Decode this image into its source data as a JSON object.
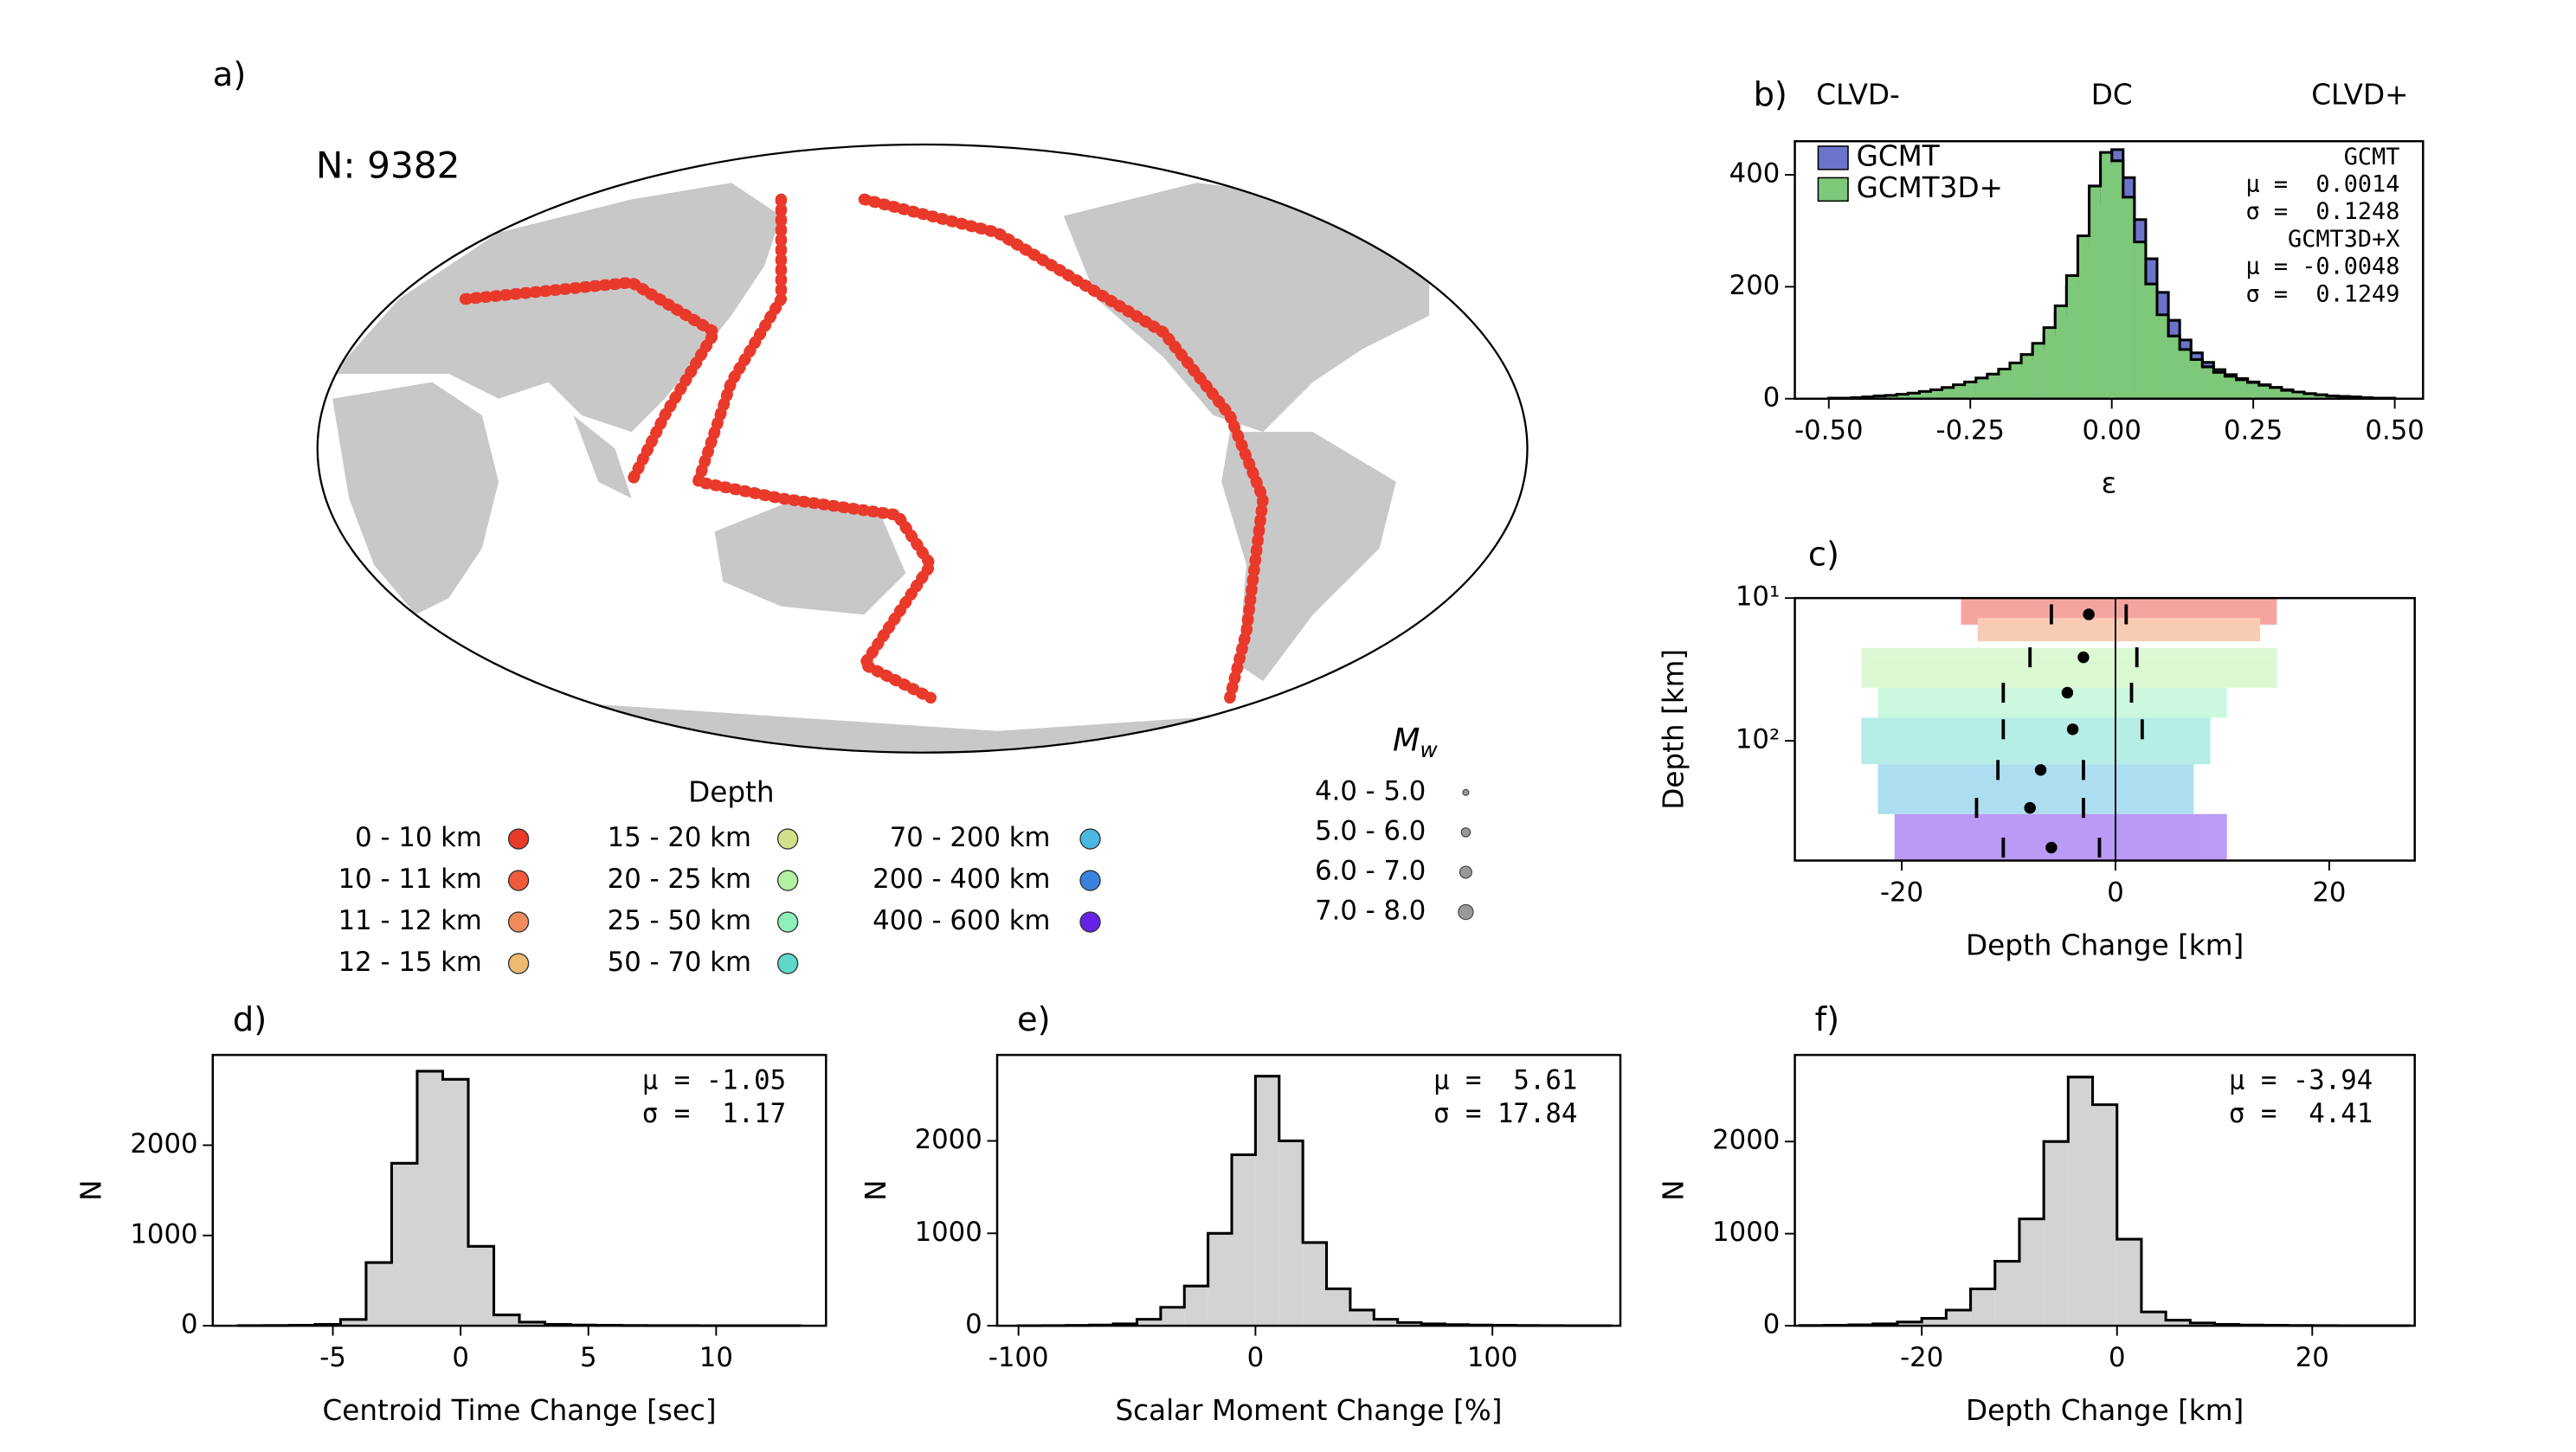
{
  "chart_data": [
    {
      "type": "map",
      "panel": "a)",
      "annotation": "N: 9382",
      "legend_title": "Depth",
      "depth_classes": [
        {
          "label": "0 - 10 km",
          "color": "#e8392a"
        },
        {
          "label": "10 - 11 km",
          "color": "#ef5a3a"
        },
        {
          "label": "11 - 12 km",
          "color": "#f08c5c"
        },
        {
          "label": "12 - 15 km",
          "color": "#eeba72"
        },
        {
          "label": "15 - 20 km",
          "color": "#d3e08a"
        },
        {
          "label": "20 - 25 km",
          "color": "#b3f0a0"
        },
        {
          "label": "25 - 50 km",
          "color": "#8df0b8"
        },
        {
          "label": "50 - 70 km",
          "color": "#5ed8c8"
        },
        {
          "label": "70 - 200 km",
          "color": "#4ab8e0"
        },
        {
          "label": "200 - 400 km",
          "color": "#3a82e0"
        },
        {
          "label": "400 - 600 km",
          "color": "#6622e8"
        }
      ],
      "size_legend": {
        "title": "M",
        "subscript": "w",
        "classes": [
          "4.0 - 5.0",
          "5.0 - 6.0",
          "6.0 - 7.0",
          "7.0 - 8.0"
        ]
      }
    },
    {
      "type": "histogram",
      "panel": "b)",
      "top_labels": [
        "CLVD-",
        "DC",
        "CLVD+"
      ],
      "xlabel": "ε",
      "legend": "upper left",
      "bins": [
        -0.5,
        -0.48,
        -0.46,
        -0.44,
        -0.42,
        -0.4,
        -0.38,
        -0.36,
        -0.34,
        -0.32,
        -0.3,
        -0.28,
        -0.26,
        -0.24,
        -0.22,
        -0.2,
        -0.18,
        -0.16,
        -0.14,
        -0.12,
        -0.1,
        -0.08,
        -0.06,
        -0.04,
        -0.02,
        0,
        0.02,
        0.04,
        0.06,
        0.08,
        0.1,
        0.12,
        0.14,
        0.16,
        0.18,
        0.2,
        0.22,
        0.24,
        0.26,
        0.28,
        0.3,
        0.32,
        0.34,
        0.36,
        0.38,
        0.4,
        0.42,
        0.44,
        0.46,
        0.48,
        0.5
      ],
      "series": [
        {
          "name": "GCMT",
          "color": "#6b74c9",
          "values": [
            1,
            1,
            2,
            3,
            4,
            5,
            7,
            9,
            12,
            15,
            18,
            22,
            27,
            33,
            40,
            48,
            58,
            72,
            90,
            115,
            150,
            200,
            270,
            350,
            420,
            445,
            395,
            320,
            250,
            190,
            140,
            105,
            82,
            65,
            52,
            43,
            36,
            30,
            25,
            20,
            16,
            12,
            9,
            7,
            5,
            4,
            3,
            2,
            1,
            1
          ]
        },
        {
          "name": "GCMT3D+",
          "color": "#7ec87a",
          "values": [
            1,
            1,
            2,
            3,
            5,
            6,
            8,
            10,
            13,
            16,
            20,
            25,
            30,
            37,
            44,
            53,
            64,
            79,
            99,
            127,
            166,
            220,
            291,
            380,
            440,
            425,
            360,
            280,
            205,
            150,
            112,
            88,
            70,
            57,
            47,
            40,
            34,
            29,
            24,
            20,
            15,
            12,
            9,
            7,
            5,
            4,
            3,
            2,
            1,
            1
          ]
        }
      ],
      "xlim": [
        -0.56,
        0.55
      ],
      "ylim": [
        0,
        460
      ],
      "xticks": [
        {
          "value": -0.5,
          "label": "-0.50"
        },
        -0.25,
        {
          "value": 0,
          "label": "0.00"
        },
        0.25,
        {
          "value": 0.5,
          "label": "0.50"
        }
      ],
      "yticks": [
        0,
        200,
        400
      ],
      "stats": [
        "GCMT",
        "μ =  0.0014",
        "σ =  0.1248",
        "GCMT3D+X",
        "μ = -0.0048",
        "σ =  0.1249"
      ]
    },
    {
      "type": "scatter",
      "panel": "c)",
      "xlabel": "Depth Change [km]",
      "ylabel": "Depth [km]",
      "log_y": true,
      "invert_y": true,
      "color": "#000000",
      "x": [
        -2.5,
        -3,
        -4.5,
        -4,
        -7,
        -8,
        -6
      ],
      "y": [
        13,
        26,
        46,
        83,
        160,
        295,
        560
      ],
      "xerr": [
        3.5,
        5,
        6,
        6.5,
        4,
        5,
        4.5
      ],
      "xlim": [
        -30,
        28
      ],
      "ylim": [
        10,
        690
      ],
      "xticks": [
        -20,
        0,
        20
      ],
      "yticks": [
        {
          "value": 10,
          "label": "10¹"
        },
        {
          "value": 100,
          "label": "10²"
        }
      ]
    },
    {
      "type": "histogram",
      "panel": "d)",
      "xlabel": "Centroid Time Change [sec]",
      "ylabel": "N",
      "color": "#d3d3d3",
      "bins": [
        -8.7,
        -7.7,
        -6.7,
        -5.7,
        -4.7,
        -3.7,
        -2.7,
        -1.7,
        -0.7,
        0.3,
        1.3,
        2.3,
        3.3,
        4.3,
        5.3,
        6.3,
        7.3,
        8.3,
        9.3,
        10.3,
        11.3,
        12.3,
        13.3
      ],
      "values": [
        2,
        3,
        5,
        15,
        70,
        700,
        1800,
        2820,
        2730,
        880,
        120,
        40,
        15,
        8,
        5,
        3,
        2,
        2,
        1,
        1,
        1,
        1
      ],
      "xlim": [
        -9.7,
        14.3
      ],
      "ylim": [
        0,
        3000
      ],
      "xticks": [
        -5,
        0,
        5,
        10
      ],
      "yticks": [
        0,
        1000,
        2000
      ],
      "stats": [
        "μ = -1.05",
        "σ =  1.17"
      ]
    },
    {
      "type": "histogram",
      "panel": "e)",
      "xlabel": "Scalar Moment Change [%]",
      "ylabel": "N",
      "color": "#d3d3d3",
      "bins": [
        -100,
        -90,
        -80,
        -70,
        -60,
        -50,
        -40,
        -30,
        -20,
        -10,
        0,
        10,
        20,
        30,
        40,
        50,
        60,
        70,
        80,
        90,
        100,
        110,
        120,
        130,
        140,
        150
      ],
      "values": [
        1,
        2,
        4,
        8,
        20,
        70,
        200,
        430,
        1000,
        1850,
        2700,
        2000,
        900,
        400,
        170,
        70,
        35,
        20,
        12,
        8,
        5,
        3,
        2,
        1,
        1
      ],
      "xlim": [
        -109,
        154
      ],
      "ylim": [
        0,
        2930
      ],
      "xticks": [
        -100,
        0,
        100
      ],
      "yticks": [
        0,
        1000,
        2000
      ],
      "stats": [
        "μ =  5.61",
        "σ = 17.84"
      ]
    },
    {
      "type": "histogram",
      "panel": "f)",
      "xlabel": "Depth Change [km]",
      "ylabel": "N",
      "color": "#d3d3d3",
      "bins": [
        -32.5,
        -30,
        -27.5,
        -25,
        -22.5,
        -20,
        -17.5,
        -15,
        -12.5,
        -10,
        -7.5,
        -5,
        -2.5,
        0,
        2.5,
        5,
        7.5,
        10,
        12.5,
        15,
        17.5,
        20,
        22.5,
        25,
        27.5,
        30
      ],
      "values": [
        3,
        5,
        10,
        20,
        40,
        80,
        170,
        400,
        700,
        1160,
        2000,
        2700,
        2400,
        940,
        150,
        60,
        30,
        15,
        8,
        5,
        3,
        2,
        1,
        1,
        1
      ],
      "xlim": [
        -33,
        30.5
      ],
      "ylim": [
        0,
        2940
      ],
      "xticks": [
        -20,
        0,
        20
      ],
      "yticks": [
        0,
        1000,
        2000
      ],
      "stats": [
        "μ = -3.94",
        "σ =  4.41"
      ]
    }
  ]
}
